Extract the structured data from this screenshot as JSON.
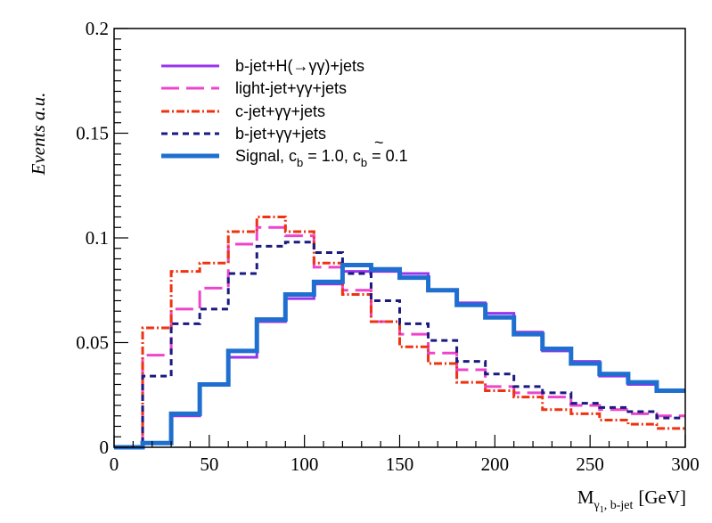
{
  "chart_data": {
    "type": "line",
    "style": "step-histogram",
    "xlabel": "M",
    "xlabel_sub": "γ",
    "xlabel_subsub": "1",
    "xlabel_sub_tail": ", b-jet",
    "xlabel_unit": "[GeV]",
    "ylabel": "Events a.u.",
    "xlim": [
      0,
      300
    ],
    "ylim": [
      0,
      0.2
    ],
    "xticks": [
      0,
      50,
      100,
      150,
      200,
      250,
      300
    ],
    "xtick_labels": [
      "0",
      "50",
      "100",
      "150",
      "200",
      "250",
      "300"
    ],
    "yticks": [
      0,
      0.05,
      0.1,
      0.15,
      0.2
    ],
    "ytick_labels": [
      "0",
      "0.05",
      "0.1",
      "0.15",
      "0.2"
    ],
    "bin_edges": [
      0,
      15,
      30,
      45,
      60,
      75,
      90,
      105,
      120,
      135,
      150,
      165,
      180,
      195,
      210,
      225,
      240,
      255,
      270,
      285,
      300
    ],
    "legend_position": "top-left",
    "series": [
      {
        "name": "b-jet+H(→γγ)+jets",
        "color": "#9933ee",
        "dash": "solid",
        "values": [
          0.0,
          0.002,
          0.015,
          0.03,
          0.043,
          0.06,
          0.071,
          0.078,
          0.084,
          0.084,
          0.083,
          0.075,
          0.069,
          0.064,
          0.055,
          0.046,
          0.041,
          0.034,
          0.03,
          0.027
        ]
      },
      {
        "name": "light-jet+γγ+jets",
        "color": "#ee44cc",
        "dash": "longdash",
        "values": [
          0.0,
          0.044,
          0.066,
          0.076,
          0.097,
          0.105,
          0.101,
          0.086,
          0.075,
          0.06,
          0.054,
          0.045,
          0.037,
          0.029,
          0.026,
          0.024,
          0.02,
          0.018,
          0.016,
          0.015
        ]
      },
      {
        "name": "c-jet+γγ+jets",
        "color": "#ee3311",
        "dash": "dashdot",
        "values": [
          0.0,
          0.057,
          0.084,
          0.088,
          0.103,
          0.11,
          0.103,
          0.088,
          0.073,
          0.06,
          0.048,
          0.04,
          0.031,
          0.027,
          0.024,
          0.018,
          0.016,
          0.013,
          0.011,
          0.009
        ]
      },
      {
        "name": "b-jet+γγ+jets",
        "color": "#1a1a80",
        "dash": "shortdash",
        "values": [
          0.0,
          0.034,
          0.059,
          0.066,
          0.083,
          0.096,
          0.098,
          0.093,
          0.083,
          0.07,
          0.059,
          0.051,
          0.041,
          0.035,
          0.029,
          0.026,
          0.021,
          0.019,
          0.017,
          0.014
        ]
      },
      {
        "name": "Signal, c",
        "name_sub": "b",
        "name_mid": " = 1.0, c",
        "name_tilde": "~",
        "name_sub2": "b",
        "name_tail": " = 0.1",
        "color": "#1f6fd0",
        "dash": "solid-thick",
        "values": [
          0.0,
          0.002,
          0.016,
          0.03,
          0.046,
          0.061,
          0.073,
          0.079,
          0.087,
          0.085,
          0.081,
          0.075,
          0.068,
          0.062,
          0.054,
          0.047,
          0.04,
          0.035,
          0.031,
          0.027
        ]
      }
    ]
  }
}
